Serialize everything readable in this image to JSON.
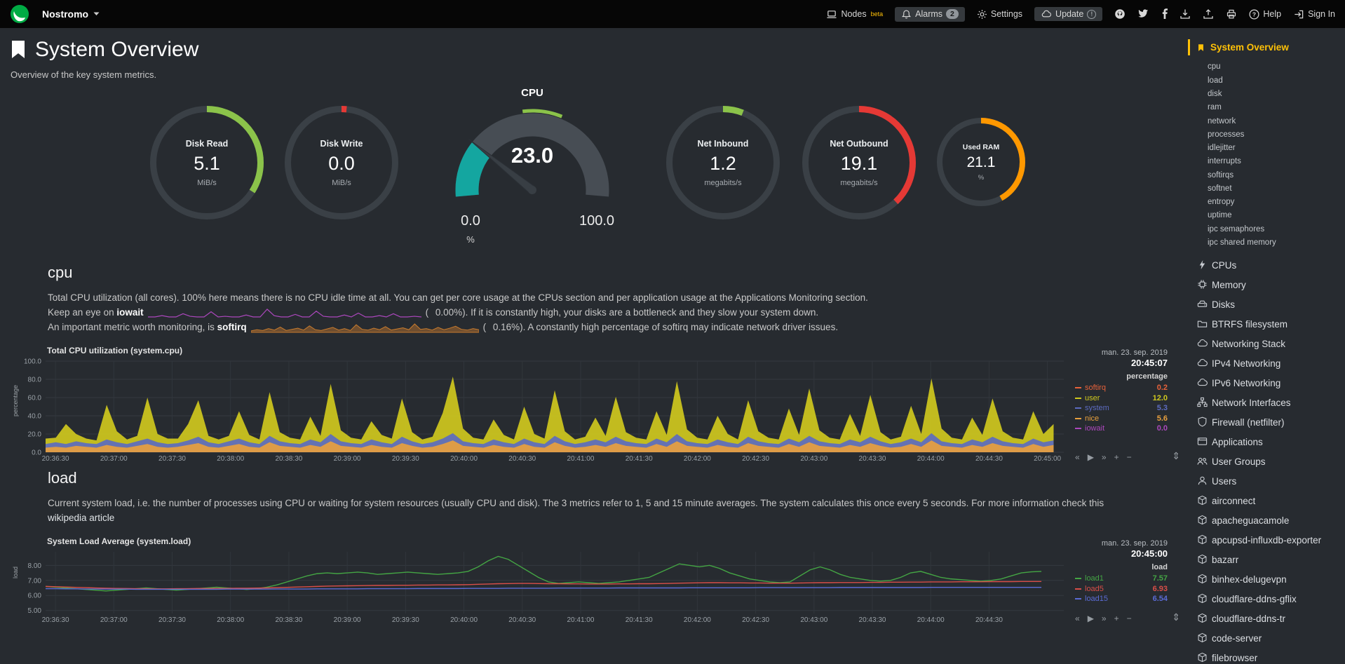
{
  "topbar": {
    "hostname": "Nostromo",
    "nodes_label": "Nodes",
    "nodes_badge": "beta",
    "alarms_label": "Alarms",
    "alarms_badge": "2",
    "settings_label": "Settings",
    "update_label": "Update",
    "update_badge": "!",
    "help_label": "Help",
    "signin_label": "Sign In",
    "icon_names": [
      "netdata-logo",
      "caret-down-icon",
      "nodes-icon",
      "bell-icon",
      "gear-icon",
      "cloud-update-icon",
      "github-icon",
      "twitter-icon",
      "facebook-icon",
      "download-icon",
      "upload-icon",
      "print-icon",
      "help-icon",
      "signin-icon"
    ]
  },
  "header": {
    "title": "System Overview",
    "subtitle": "Overview of the key system metrics."
  },
  "colors": {
    "accent_yellow": "#FFC107",
    "green": "#8BC34A",
    "red": "#E53935",
    "orange": "#FF9800",
    "gauge_fill": "#14A6A0",
    "background": "#272b30",
    "topbar": "#060606"
  },
  "gauges": {
    "disk_read": {
      "label": "Disk Read",
      "value": "5.1",
      "unit": "MiB/s",
      "percent": 34,
      "color": "#8BC34A"
    },
    "disk_write": {
      "label": "Disk Write",
      "value": "0.0",
      "unit": "MiB/s",
      "percent": 1.5,
      "color": "#E53935"
    },
    "net_inbound": {
      "label": "Net Inbound",
      "value": "1.2",
      "unit": "megabits/s",
      "percent": 6,
      "color": "#8BC34A"
    },
    "net_outbound": {
      "label": "Net Outbound",
      "value": "19.1",
      "unit": "megabits/s",
      "percent": 38,
      "color": "#E53935"
    },
    "used_ram": {
      "label": "Used RAM",
      "value": "21.1",
      "unit": "%",
      "percent": 42,
      "color": "#FF9800"
    }
  },
  "cpu_gauge": {
    "title": "CPU",
    "value": "23.0",
    "min": "0.0",
    "max": "100.0",
    "unit": "%",
    "percent": 23,
    "fill_color": "#14A6A0",
    "ok_color": "#8BC34A"
  },
  "cpu_section": {
    "heading": "cpu",
    "line1": "Total CPU utilization (all cores). 100% here means there is no CPU idle time at all. You can get per core usage at the CPUs section and per application usage at the Applications Monitoring section.",
    "line2_pre": "Keep an eye on ",
    "line2_metric": "iowait",
    "line2_open": "(",
    "line2_value": "0.00%",
    "line2_post": "). If it is constantly high, your disks are a bottleneck and they slow your system down.",
    "line3_pre": "An important metric worth monitoring, is ",
    "line3_metric": "softirq",
    "line3_open": "(",
    "line3_value": "0.16%",
    "line3_post": "). A constantly high percentage of softirq may indicate network driver issues."
  },
  "load_section": {
    "heading": "load",
    "line1": "Current system load, i.e. the number of processes using CPU or waiting for system resources (usually CPU and disk). The 3 metrics refer to 1, 5 and 15 minute averages. The system calculates this once every 5 seconds. For more information check this ",
    "link_text": "wikipedia article"
  },
  "sidebar": {
    "active_label": "System Overview",
    "submenu": [
      "cpu",
      "load",
      "disk",
      "ram",
      "network",
      "processes",
      "idlejitter",
      "interrupts",
      "softirqs",
      "softnet",
      "entropy",
      "uptime",
      "ipc semaphores",
      "ipc shared memory"
    ],
    "items": [
      {
        "label": "CPUs",
        "icon": "bolt"
      },
      {
        "label": "Memory",
        "icon": "chip"
      },
      {
        "label": "Disks",
        "icon": "hdd"
      },
      {
        "label": "BTRFS filesystem",
        "icon": "folder"
      },
      {
        "label": "Networking Stack",
        "icon": "cloud"
      },
      {
        "label": "IPv4 Networking",
        "icon": "cloud"
      },
      {
        "label": "IPv6 Networking",
        "icon": "cloud"
      },
      {
        "label": "Network Interfaces",
        "icon": "port"
      },
      {
        "label": "Firewall (netfilter)",
        "icon": "shield"
      },
      {
        "label": "Applications",
        "icon": "window"
      },
      {
        "label": "User Groups",
        "icon": "users"
      },
      {
        "label": "Users",
        "icon": "user"
      },
      {
        "label": "airconnect",
        "icon": "cube"
      },
      {
        "label": "apacheguacamole",
        "icon": "cube"
      },
      {
        "label": "apcupsd-influxdb-exporter",
        "icon": "cube"
      },
      {
        "label": "bazarr",
        "icon": "cube"
      },
      {
        "label": "binhex-delugevpn",
        "icon": "cube"
      },
      {
        "label": "cloudflare-ddns-gflix",
        "icon": "cube"
      },
      {
        "label": "cloudflare-ddns-tr",
        "icon": "cube"
      },
      {
        "label": "code-server",
        "icon": "cube"
      },
      {
        "label": "filebrowser",
        "icon": "cube"
      }
    ]
  },
  "chart_data": [
    {
      "id": "system.cpu",
      "type": "area",
      "title": "Total CPU utilization (system.cpu)",
      "date": "man. 23. sep. 2019",
      "time": "20:45:07",
      "unit": "percentage",
      "ylabel": "percentage",
      "ylim": [
        0,
        100
      ],
      "yticks": [
        0,
        20,
        40,
        60,
        80,
        100
      ],
      "ytick_labels": [
        "0.0",
        "20.0",
        "40.0",
        "60.0",
        "80.0",
        "100.0"
      ],
      "xticks": [
        "20:36:30",
        "20:37:00",
        "20:37:30",
        "20:38:00",
        "20:38:30",
        "20:39:00",
        "20:39:30",
        "20:40:00",
        "20:40:30",
        "20:41:00",
        "20:41:30",
        "20:42:00",
        "20:42:30",
        "20:43:00",
        "20:43:30",
        "20:44:00",
        "20:44:30",
        "20:45:00"
      ],
      "grid": true,
      "legend_position": "right",
      "legend": [
        {
          "name": "softirq",
          "value": "0.2",
          "color": "#E8623A"
        },
        {
          "name": "user",
          "value": "12.0",
          "color": "#CFC81E"
        },
        {
          "name": "system",
          "value": "5.3",
          "color": "#5C6BC0"
        },
        {
          "name": "nice",
          "value": "5.6",
          "color": "#E8A03E"
        },
        {
          "name": "iowait",
          "value": "0.0",
          "color": "#AB47BC"
        }
      ],
      "stack": [
        {
          "name": "nice",
          "color": "#E8A03E",
          "values": [
            5,
            6,
            5,
            7,
            6,
            5,
            8,
            6,
            5,
            7,
            9,
            6,
            5,
            6,
            8,
            10,
            6,
            5,
            7,
            9,
            6,
            5,
            11,
            7,
            6,
            5,
            8,
            6,
            12,
            7,
            6,
            5,
            8,
            6,
            5,
            10,
            7,
            5,
            6,
            9,
            13,
            7,
            6,
            5,
            8,
            6,
            5,
            9,
            6,
            5,
            11,
            7,
            5,
            6,
            8,
            6,
            10,
            7,
            6,
            5,
            9,
            6,
            12,
            7,
            6,
            5,
            8,
            6,
            5,
            10,
            7,
            6,
            5,
            9,
            6,
            11,
            7,
            6,
            5,
            8,
            6,
            10,
            7,
            5,
            6,
            9,
            6,
            13,
            7,
            6,
            5,
            8,
            6,
            10,
            7,
            6,
            5,
            9,
            6,
            8
          ]
        },
        {
          "name": "system",
          "color": "#5C6BC0",
          "values": [
            4,
            5,
            4,
            5,
            4,
            4,
            6,
            5,
            4,
            5,
            6,
            5,
            4,
            4,
            5,
            7,
            5,
            4,
            5,
            6,
            5,
            4,
            7,
            5,
            4,
            4,
            6,
            5,
            8,
            5,
            4,
            4,
            6,
            5,
            4,
            7,
            5,
            4,
            5,
            6,
            8,
            5,
            4,
            4,
            6,
            5,
            4,
            6,
            5,
            4,
            7,
            5,
            4,
            5,
            6,
            5,
            7,
            5,
            4,
            4,
            6,
            5,
            8,
            5,
            4,
            4,
            6,
            5,
            4,
            7,
            5,
            4,
            4,
            6,
            5,
            7,
            5,
            4,
            4,
            6,
            5,
            7,
            5,
            4,
            5,
            6,
            5,
            8,
            5,
            4,
            4,
            6,
            5,
            7,
            5,
            4,
            4,
            6,
            5,
            5
          ]
        },
        {
          "name": "user",
          "color": "#CFC81E",
          "values": [
            6,
            5,
            22,
            8,
            5,
            4,
            38,
            12,
            5,
            6,
            45,
            9,
            6,
            5,
            18,
            40,
            7,
            5,
            6,
            30,
            8,
            5,
            48,
            10,
            6,
            5,
            25,
            7,
            55,
            12,
            6,
            5,
            20,
            8,
            6,
            42,
            10,
            5,
            6,
            28,
            62,
            14,
            6,
            5,
            22,
            8,
            5,
            35,
            9,
            6,
            50,
            11,
            5,
            6,
            24,
            7,
            44,
            10,
            6,
            5,
            30,
            8,
            58,
            13,
            6,
            5,
            26,
            9,
            5,
            40,
            11,
            6,
            5,
            33,
            8,
            52,
            12,
            6,
            5,
            28,
            7,
            46,
            10,
            5,
            6,
            36,
            9,
            60,
            14,
            6,
            5,
            24,
            8,
            42,
            11,
            6,
            5,
            30,
            9,
            18
          ]
        },
        {
          "name": "softirq",
          "color": "#E8623A",
          "values": 0.2
        },
        {
          "name": "iowait",
          "color": "#AB47BC",
          "values": 0
        }
      ],
      "toolbox": [
        "«",
        "▶",
        "»",
        "+",
        "−"
      ],
      "resize_icon": "⇕"
    },
    {
      "id": "system.load",
      "type": "line",
      "title": "System Load Average (system.load)",
      "date": "man. 23. sep. 2019",
      "time": "20:45:00",
      "unit": "load",
      "ylabel": "load",
      "ylim": [
        4.8,
        8.9
      ],
      "yticks": [
        5,
        6,
        7,
        8
      ],
      "ytick_labels": [
        "5.00",
        "6.00",
        "7.00",
        "8.00"
      ],
      "xticks": [
        "20:36:30",
        "20:37:00",
        "20:37:30",
        "20:38:00",
        "20:38:30",
        "20:39:00",
        "20:39:30",
        "20:40:00",
        "20:40:30",
        "20:41:00",
        "20:41:30",
        "20:42:00",
        "20:42:30",
        "20:43:00",
        "20:43:30",
        "20:44:00",
        "20:44:30"
      ],
      "grid": true,
      "legend_position": "right",
      "legend": [
        {
          "name": "load1",
          "value": "7.57",
          "color": "#44A544"
        },
        {
          "name": "load5",
          "value": "6.93",
          "color": "#D94E48"
        },
        {
          "name": "load15",
          "value": "6.54",
          "color": "#5B6BD5"
        }
      ],
      "series": [
        {
          "name": "load1",
          "color": "#44A544",
          "values": [
            6.6,
            6.55,
            6.5,
            6.45,
            6.4,
            6.35,
            6.3,
            6.35,
            6.4,
            6.45,
            6.5,
            6.45,
            6.4,
            6.35,
            6.4,
            6.45,
            6.5,
            6.55,
            6.5,
            6.45,
            6.4,
            6.45,
            6.55,
            6.7,
            6.9,
            7.1,
            7.3,
            7.45,
            7.5,
            7.45,
            7.5,
            7.55,
            7.5,
            7.4,
            7.45,
            7.5,
            7.55,
            7.5,
            7.45,
            7.4,
            7.45,
            7.5,
            7.6,
            7.9,
            8.3,
            8.6,
            8.4,
            8.0,
            7.6,
            7.2,
            6.9,
            6.8,
            6.85,
            6.9,
            6.85,
            6.8,
            6.85,
            6.9,
            7.0,
            7.1,
            7.2,
            7.5,
            7.8,
            8.1,
            8.0,
            7.9,
            8.0,
            7.8,
            7.5,
            7.3,
            7.1,
            7.0,
            6.9,
            6.85,
            6.9,
            7.3,
            7.7,
            7.9,
            7.7,
            7.4,
            7.2,
            7.1,
            7.0,
            6.95,
            7.0,
            7.2,
            7.5,
            7.6,
            7.4,
            7.2,
            7.1,
            7.05,
            7.0,
            6.95,
            7.0,
            7.1,
            7.3,
            7.5,
            7.57,
            7.6
          ]
        },
        {
          "name": "load5",
          "color": "#D94E48",
          "values": [
            6.6,
            6.58,
            6.56,
            6.54,
            6.52,
            6.5,
            6.48,
            6.47,
            6.46,
            6.45,
            6.45,
            6.44,
            6.44,
            6.45,
            6.45,
            6.46,
            6.46,
            6.47,
            6.47,
            6.48,
            6.48,
            6.49,
            6.5,
            6.52,
            6.54,
            6.56,
            6.58,
            6.6,
            6.62,
            6.63,
            6.64,
            6.65,
            6.66,
            6.67,
            6.67,
            6.68,
            6.68,
            6.69,
            6.69,
            6.7,
            6.7,
            6.71,
            6.72,
            6.74,
            6.76,
            6.78,
            6.79,
            6.8,
            6.8,
            6.79,
            6.78,
            6.78,
            6.77,
            6.77,
            6.76,
            6.76,
            6.76,
            6.77,
            6.77,
            6.78,
            6.78,
            6.79,
            6.8,
            6.82,
            6.83,
            6.84,
            6.85,
            6.85,
            6.84,
            6.84,
            6.83,
            6.83,
            6.82,
            6.82,
            6.82,
            6.83,
            6.84,
            6.85,
            6.85,
            6.86,
            6.86,
            6.86,
            6.87,
            6.87,
            6.88,
            6.88,
            6.89,
            6.89,
            6.9,
            6.9,
            6.9,
            6.91,
            6.91,
            6.91,
            6.92,
            6.92,
            6.92,
            6.93,
            6.93,
            6.93
          ]
        },
        {
          "name": "load15",
          "color": "#5B6BD5",
          "values": [
            6.45,
            6.45,
            6.44,
            6.44,
            6.43,
            6.43,
            6.42,
            6.42,
            6.42,
            6.41,
            6.41,
            6.41,
            6.41,
            6.41,
            6.41,
            6.41,
            6.41,
            6.41,
            6.42,
            6.42,
            6.42,
            6.42,
            6.42,
            6.43,
            6.43,
            6.43,
            6.43,
            6.44,
            6.44,
            6.44,
            6.44,
            6.44,
            6.45,
            6.45,
            6.45,
            6.45,
            6.45,
            6.46,
            6.46,
            6.46,
            6.46,
            6.46,
            6.47,
            6.47,
            6.47,
            6.47,
            6.48,
            6.48,
            6.48,
            6.48,
            6.48,
            6.49,
            6.49,
            6.49,
            6.49,
            6.49,
            6.49,
            6.5,
            6.5,
            6.5,
            6.5,
            6.5,
            6.5,
            6.5,
            6.51,
            6.51,
            6.51,
            6.51,
            6.51,
            6.51,
            6.51,
            6.52,
            6.52,
            6.52,
            6.52,
            6.52,
            6.52,
            6.52,
            6.52,
            6.53,
            6.53,
            6.53,
            6.53,
            6.53,
            6.53,
            6.53,
            6.53,
            6.53,
            6.54,
            6.54,
            6.54,
            6.54,
            6.54,
            6.54,
            6.54,
            6.54,
            6.54,
            6.54,
            6.54,
            6.54
          ]
        }
      ],
      "toolbox": [
        "«",
        "▶",
        "»",
        "+",
        "−"
      ],
      "resize_icon": "⇕"
    },
    {
      "id": "iowait-sparkline",
      "type": "line",
      "color": "#AB47BC",
      "values": [
        0,
        0,
        0.2,
        0,
        0,
        0.5,
        0.1,
        0,
        0,
        0.8,
        0,
        0.1,
        0,
        0,
        0.3,
        0,
        0,
        1.2,
        0.2,
        0,
        0,
        0.4,
        0,
        0,
        0.9,
        0.1,
        0,
        0,
        0.3,
        0,
        0.6,
        0,
        0,
        0.2,
        0,
        0.5,
        0,
        0,
        0.1,
        0
      ]
    },
    {
      "id": "softirq-sparkline",
      "type": "area",
      "color": "#C77B2E",
      "values": [
        0.2,
        0.5,
        0.3,
        0.8,
        0.4,
        1.2,
        0.3,
        0.6,
        0.9,
        0.4,
        1.5,
        0.5,
        0.3,
        0.7,
        1.1,
        0.4,
        0.8,
        0.3,
        1.8,
        0.6,
        0.4,
        0.9,
        0.5,
        1.3,
        0.4,
        0.7,
        1.0,
        0.5,
        2.0,
        0.6,
        0.8,
        0.4,
        1.1,
        0.5,
        0.9,
        1.4,
        0.6,
        0.4,
        0.8,
        0.5
      ]
    }
  ]
}
